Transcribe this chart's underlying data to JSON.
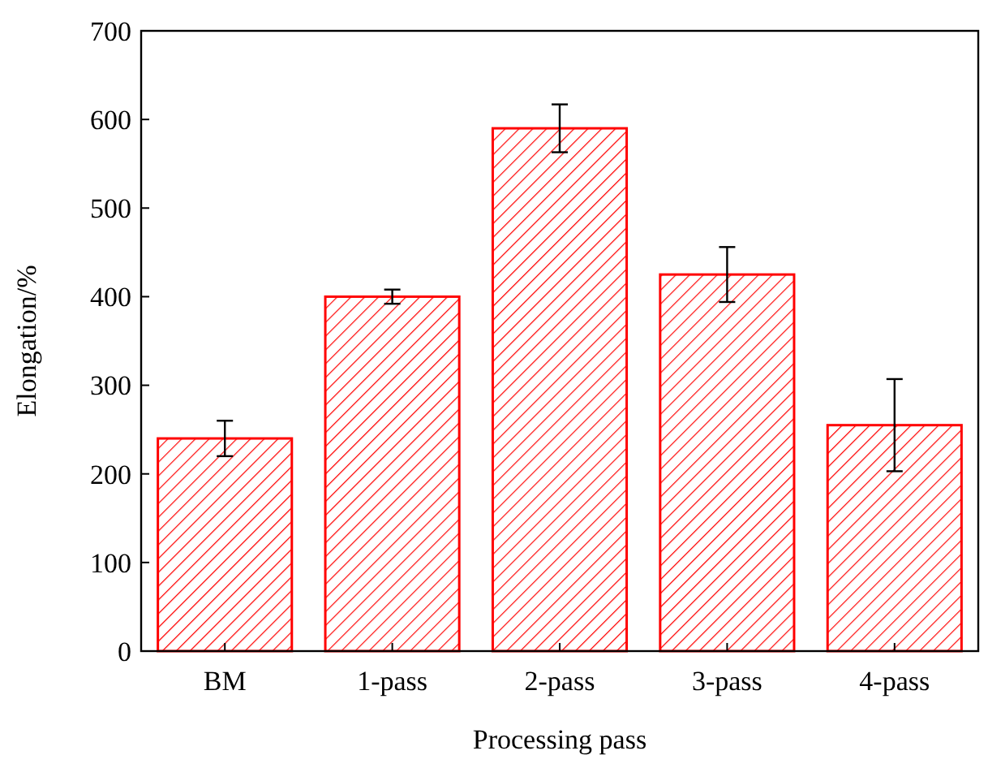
{
  "chart_data": {
    "type": "bar",
    "xlabel": "Processing pass",
    "ylabel": "Elongation/%",
    "categories": [
      "BM",
      "1-pass",
      "2-pass",
      "3-pass",
      "4-pass"
    ],
    "values": [
      240,
      400,
      590,
      425,
      255
    ],
    "errors": [
      20,
      8,
      27,
      31,
      52
    ],
    "color": "#ff0000",
    "ylim": [
      0,
      700
    ],
    "yticks": [
      0,
      100,
      200,
      300,
      400,
      500,
      600,
      700
    ],
    "grid": false
  }
}
